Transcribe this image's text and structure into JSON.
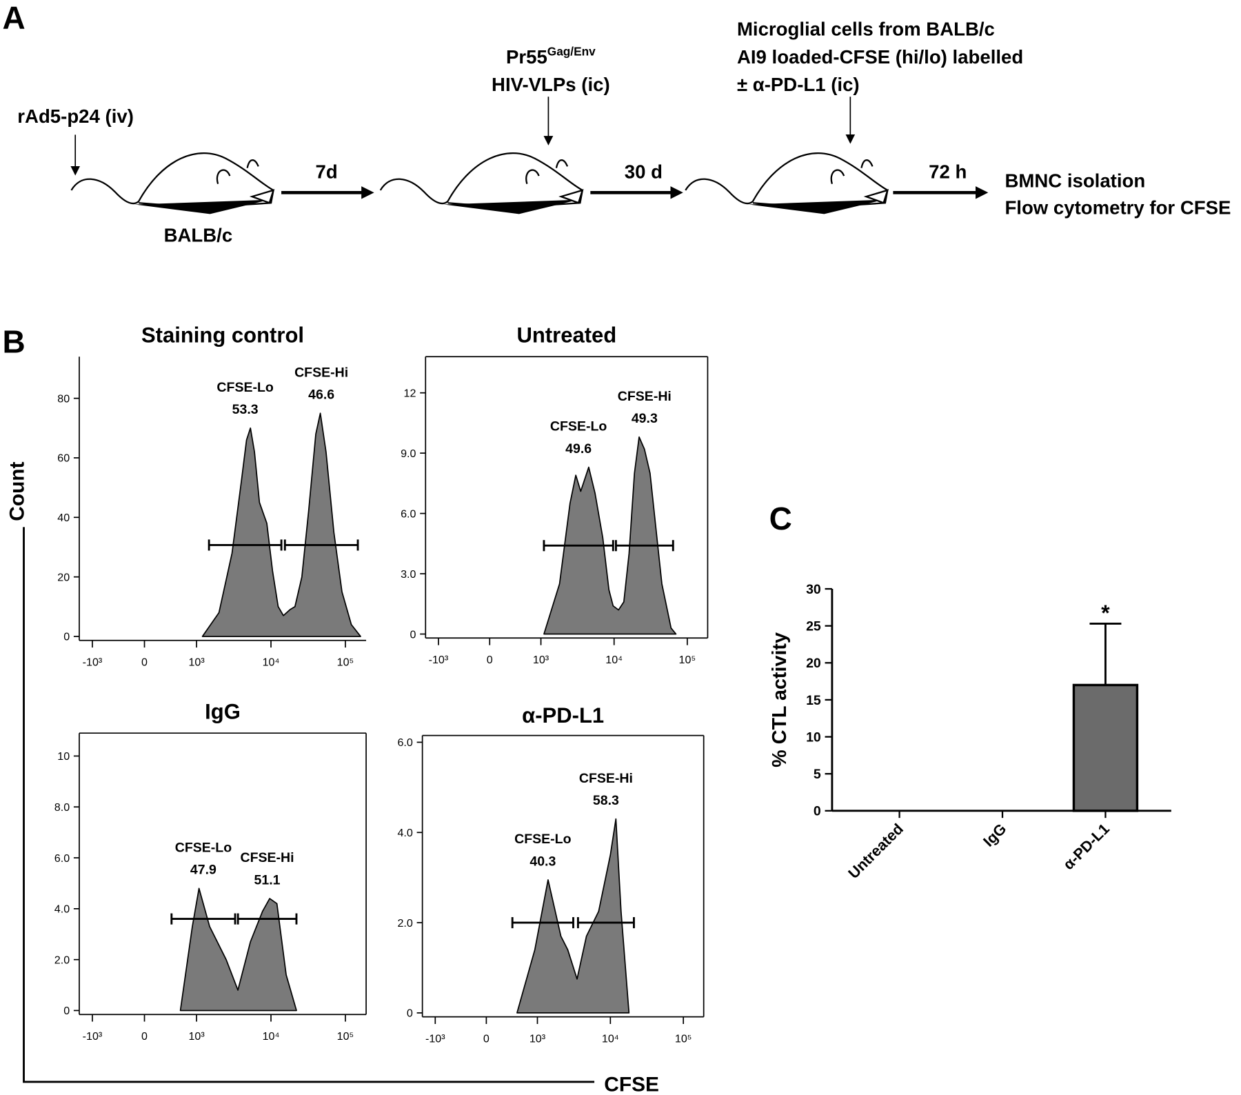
{
  "panel_labels": [
    "A",
    "B",
    "C"
  ],
  "schematic": {
    "step1": "rAd5-p24 (iv)",
    "mouse_strain": "BALB/c",
    "wait1": "7d",
    "step2_name": "Pr55",
    "step2_superscript": "Gag/Env",
    "step2_route": "HIV-VLPs (ic)",
    "wait2": "30 d",
    "step3_lines": [
      "Microglial cells from BALB/c",
      "AI9 loaded-CFSE (hi/lo) labelled",
      "± α-PD-L1 (ic)"
    ],
    "wait3": "72 h",
    "readout_lines": [
      "BMNC isolation",
      "Flow cytometry for CFSE"
    ]
  },
  "shared_axes": {
    "ylabel": "Count",
    "xlabel": "CFSE"
  },
  "chart_data": [
    {
      "type": "area",
      "title": "Staining control",
      "box": false,
      "color": "#7a7a7a",
      "x": [
        1200,
        2000,
        3000,
        4000,
        4700,
        5300,
        6000,
        7000,
        8800,
        10500,
        12500,
        14700,
        18000,
        21000,
        26000,
        32000,
        40000,
        46000,
        55000,
        70000,
        90000,
        120000,
        160000
      ],
      "values": [
        0,
        8,
        28,
        52,
        66,
        70,
        62,
        45,
        38,
        22,
        10,
        7,
        9,
        10,
        20,
        42,
        68,
        75,
        62,
        35,
        15,
        4,
        0
      ],
      "xlim": [
        -1500,
        190000
      ],
      "xticks": [
        {
          "value": -1000,
          "label": "-10³"
        },
        0,
        {
          "value": 1000,
          "label": "10³"
        },
        {
          "value": 10000,
          "label": "10⁴"
        },
        {
          "value": 100000,
          "label": "10⁵"
        }
      ],
      "ylim": [
        0,
        94
      ],
      "yticks": [
        0,
        20,
        40,
        60,
        80
      ],
      "gates": [
        {
          "name": "CFSE-Lo",
          "value": 53.3,
          "range": [
            1470,
            13800
          ],
          "level": 30.7
        },
        {
          "name": "CFSE-Hi",
          "value": 46.6,
          "range": [
            15400,
            147000
          ],
          "level": 30.7
        }
      ]
    },
    {
      "type": "area",
      "title": "Untreated",
      "box": true,
      "color": "#7a7a7a",
      "x": [
        1100,
        1800,
        2500,
        3000,
        3500,
        4500,
        5500,
        7000,
        8500,
        9700,
        11500,
        13600,
        16000,
        19000,
        22000,
        26000,
        31000,
        38000,
        45000,
        60000,
        70000
      ],
      "values": [
        0,
        2.5,
        6.5,
        7.9,
        7.1,
        8.3,
        7,
        4.8,
        2.2,
        1.4,
        1.2,
        1.6,
        4,
        8,
        9.8,
        9.2,
        8,
        5,
        2.5,
        0.3,
        0
      ],
      "xlim": [
        -1500,
        190000
      ],
      "xticks": [
        {
          "value": -1000,
          "label": "-10³"
        },
        0,
        {
          "value": 1000,
          "label": "10³"
        },
        {
          "value": 10000,
          "label": "10⁴"
        },
        {
          "value": 100000,
          "label": "10⁵"
        }
      ],
      "ylim": [
        0,
        13.8
      ],
      "yticks": [
        0,
        {
          "value": 3,
          "label": "3.0"
        },
        {
          "value": 6,
          "label": "6.0"
        },
        {
          "value": 9,
          "label": "9.0"
        },
        12
      ],
      "gates": [
        {
          "name": "CFSE-Lo",
          "value": 49.6,
          "range": [
            1100,
            9700
          ],
          "level": 4.4
        },
        {
          "name": "CFSE-Hi",
          "value": 49.3,
          "range": [
            10600,
            64000
          ],
          "level": 4.4
        }
      ]
    },
    {
      "type": "area",
      "title": "IgG",
      "box": true,
      "color": "#7a7a7a",
      "x": [
        690,
        920,
        1080,
        1500,
        2500,
        3600,
        5300,
        7700,
        9600,
        12000,
        16000,
        22000
      ],
      "values": [
        0,
        3.3,
        4.8,
        3.3,
        2,
        0.8,
        2.7,
        3.9,
        4.4,
        4.2,
        1.4,
        0
      ],
      "xlim": [
        -1500,
        190000
      ],
      "xticks": [
        {
          "value": -1000,
          "label": "-10³"
        },
        0,
        {
          "value": 1000,
          "label": "10³"
        },
        {
          "value": 10000,
          "label": "10⁴"
        },
        {
          "value": 100000,
          "label": "10⁵"
        }
      ],
      "ylim": [
        0,
        10.9
      ],
      "yticks": [
        0,
        {
          "value": 2,
          "label": "2.0"
        },
        {
          "value": 4,
          "label": "4.0"
        },
        {
          "value": 6,
          "label": "6.0"
        },
        {
          "value": 8,
          "label": "8.0"
        },
        10
      ],
      "gates": [
        {
          "name": "CFSE-Lo",
          "value": 47.9,
          "range": [
            520,
            3300
          ],
          "level": 3.6
        },
        {
          "name": "CFSE-Hi",
          "value": 51.1,
          "range": [
            3600,
            22000
          ],
          "level": 3.6
        }
      ]
    },
    {
      "type": "area",
      "title": "α-PD-L1",
      "box": true,
      "color": "#7a7a7a",
      "x": [
        600,
        950,
        1400,
        2100,
        2600,
        3500,
        4700,
        6900,
        10000,
        11900,
        14000,
        18000
      ],
      "values": [
        0,
        1.4,
        2.95,
        1.7,
        1.4,
        0.75,
        1.7,
        2.25,
        3.5,
        4.3,
        2.25,
        0
      ],
      "xlim": [
        -1500,
        190000
      ],
      "xticks": [
        {
          "value": -1000,
          "label": "-10³"
        },
        0,
        {
          "value": 1000,
          "label": "10³"
        },
        {
          "value": 10000,
          "label": "10⁴"
        },
        {
          "value": 100000,
          "label": "10⁵"
        }
      ],
      "ylim": [
        0,
        6.15
      ],
      "yticks": [
        0,
        {
          "value": 2,
          "label": "2.0"
        },
        {
          "value": 4,
          "label": "4.0"
        },
        {
          "value": 6,
          "label": "6.0"
        }
      ],
      "gates": [
        {
          "name": "CFSE-Lo",
          "value": 40.3,
          "range": [
            510,
            3100
          ],
          "level": 2
        },
        {
          "name": "CFSE-Hi",
          "value": 58.3,
          "range": [
            3600,
            21000
          ],
          "level": 2
        }
      ]
    },
    {
      "type": "bar",
      "ylabel": "% CTL activity",
      "color": "#6b6b6b",
      "categories": [
        "Untreated",
        "IgG",
        "α-PD-L1"
      ],
      "values": [
        0,
        0,
        17
      ],
      "errors": [
        null,
        null,
        8.3
      ],
      "significance": [
        null,
        null,
        "*"
      ],
      "ylim": [
        0,
        30
      ],
      "yticks": [
        0,
        5,
        10,
        15,
        20,
        25,
        30
      ]
    }
  ]
}
